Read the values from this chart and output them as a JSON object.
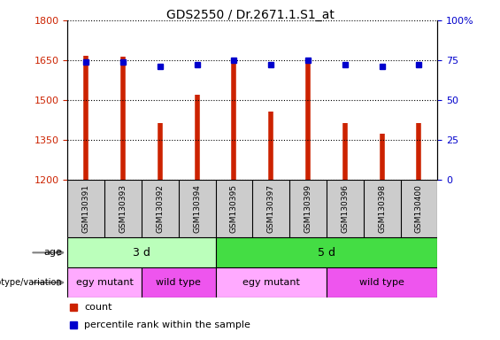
{
  "title": "GDS2550 / Dr.2671.1.S1_at",
  "samples": [
    "GSM130391",
    "GSM130393",
    "GSM130392",
    "GSM130394",
    "GSM130395",
    "GSM130397",
    "GSM130399",
    "GSM130396",
    "GSM130398",
    "GSM130400"
  ],
  "counts": [
    1668,
    1662,
    1415,
    1520,
    1638,
    1458,
    1638,
    1415,
    1375,
    1415
  ],
  "percentile_ranks": [
    74,
    74,
    71,
    72,
    75,
    72,
    75,
    72,
    71,
    72
  ],
  "ylim_left": [
    1200,
    1800
  ],
  "ylim_right": [
    0,
    100
  ],
  "yticks_left": [
    1200,
    1350,
    1500,
    1650,
    1800
  ],
  "yticks_right": [
    0,
    25,
    50,
    75,
    100
  ],
  "right_tick_labels": [
    "0",
    "25",
    "50",
    "75",
    "100%"
  ],
  "bar_color": "#cc2200",
  "dot_color": "#0000cc",
  "age_groups": [
    {
      "label": "3 d",
      "start": 0,
      "end": 4,
      "color": "#bbffbb"
    },
    {
      "label": "5 d",
      "start": 4,
      "end": 10,
      "color": "#44dd44"
    }
  ],
  "genotype_groups": [
    {
      "label": "egy mutant",
      "start": 0,
      "end": 2,
      "color": "#ffaaff"
    },
    {
      "label": "wild type",
      "start": 2,
      "end": 4,
      "color": "#ee55ee"
    },
    {
      "label": "egy mutant",
      "start": 4,
      "end": 7,
      "color": "#ffaaff"
    },
    {
      "label": "wild type",
      "start": 7,
      "end": 10,
      "color": "#ee55ee"
    }
  ],
  "legend_count_color": "#cc2200",
  "legend_dot_color": "#0000cc",
  "tick_label_color_left": "#cc2200",
  "tick_label_color_right": "#0000cc",
  "background_color": "#ffffff",
  "sample_bg_color": "#cccccc",
  "age_label": "age",
  "geno_label": "genotype/variation",
  "legend_count_text": "count",
  "legend_pct_text": "percentile rank within the sample"
}
